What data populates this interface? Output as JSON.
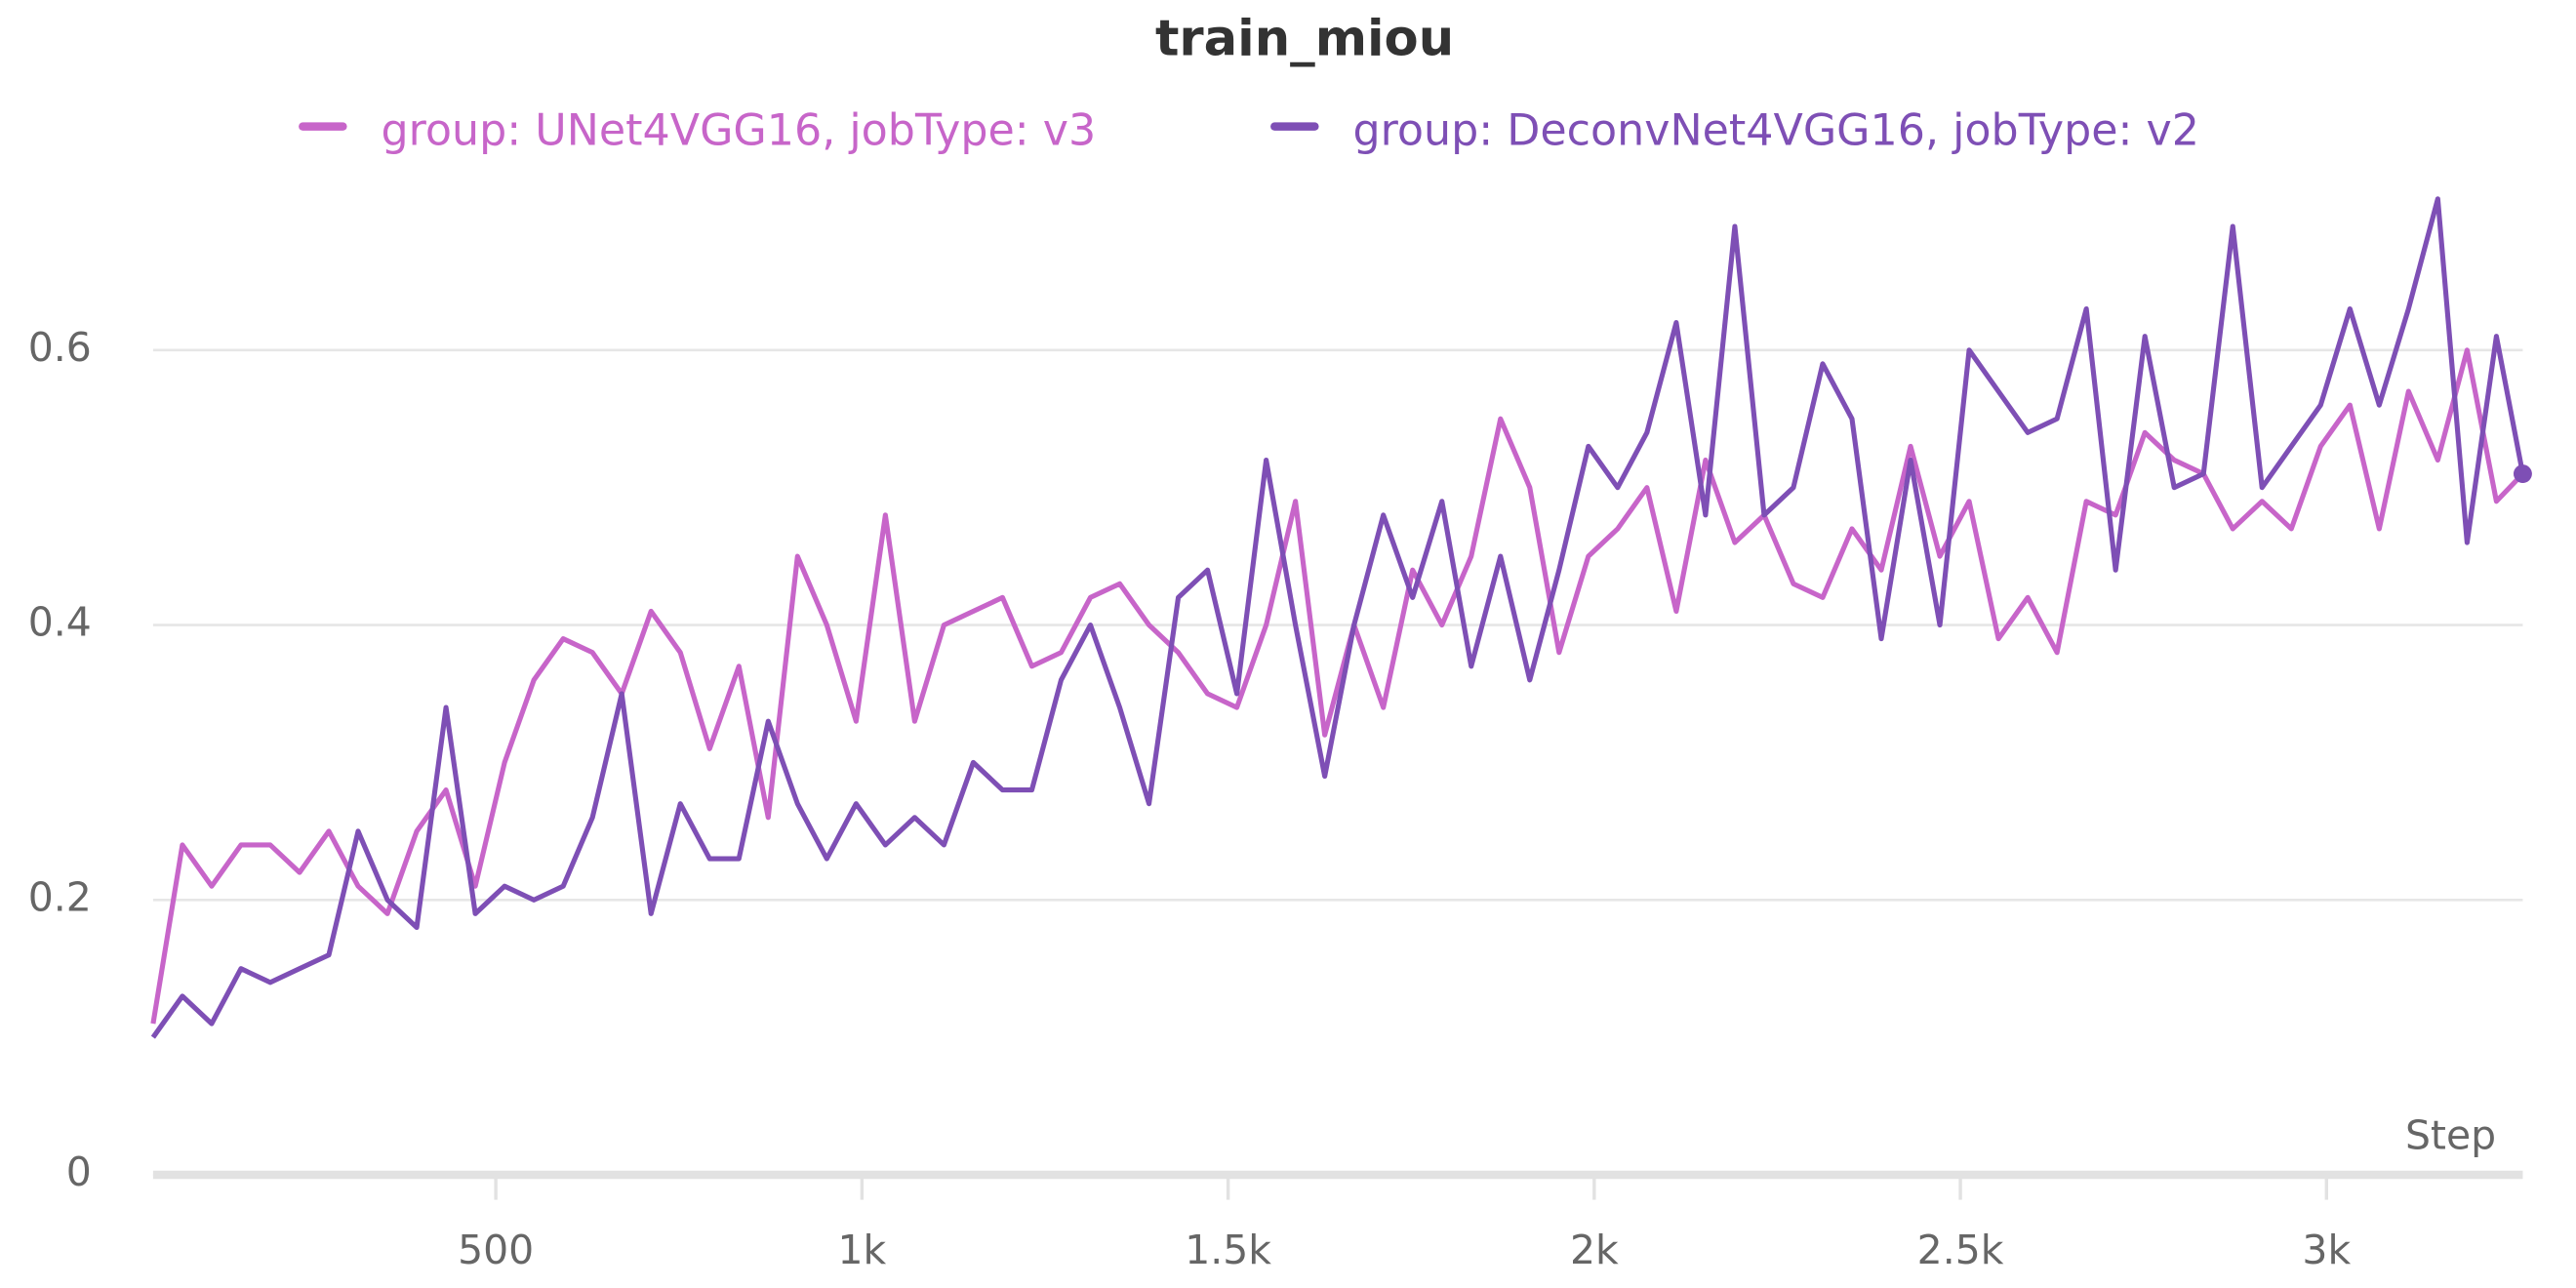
{
  "chart_data": {
    "type": "line",
    "title": "train_miou",
    "x_label": "Step",
    "x": [
      32,
      72,
      112,
      152,
      192,
      232,
      272,
      312,
      352,
      392,
      432,
      472,
      512,
      552,
      592,
      632,
      672,
      712,
      752,
      792,
      832,
      872,
      912,
      952,
      992,
      1032,
      1072,
      1112,
      1152,
      1192,
      1232,
      1272,
      1312,
      1352,
      1392,
      1432,
      1472,
      1512,
      1552,
      1592,
      1632,
      1672,
      1712,
      1752,
      1792,
      1832,
      1872,
      1912,
      1952,
      1992,
      2032,
      2072,
      2112,
      2152,
      2192,
      2232,
      2272,
      2312,
      2352,
      2392,
      2432,
      2472,
      2512,
      2552,
      2592,
      2632,
      2672,
      2712,
      2752,
      2792,
      2832,
      2872,
      2912,
      2952,
      2992,
      3032,
      3072,
      3112,
      3152,
      3192,
      3232,
      3268
    ],
    "series": [
      {
        "name": "group: UNet4VGG16, jobType: v3",
        "color": "#c765c9",
        "values": [
          0.11,
          0.24,
          0.21,
          0.24,
          0.24,
          0.22,
          0.25,
          0.21,
          0.19,
          0.25,
          0.28,
          0.21,
          0.3,
          0.36,
          0.39,
          0.38,
          0.35,
          0.41,
          0.38,
          0.31,
          0.37,
          0.26,
          0.45,
          0.4,
          0.33,
          0.48,
          0.33,
          0.4,
          0.41,
          0.42,
          0.37,
          0.38,
          0.42,
          0.43,
          0.4,
          0.38,
          0.35,
          0.34,
          0.4,
          0.49,
          0.32,
          0.4,
          0.34,
          0.44,
          0.4,
          0.45,
          0.55,
          0.5,
          0.38,
          0.45,
          0.47,
          0.5,
          0.41,
          0.52,
          0.46,
          0.48,
          0.43,
          0.42,
          0.47,
          0.44,
          0.53,
          0.45,
          0.49,
          0.39,
          0.42,
          0.38,
          0.49,
          0.48,
          0.54,
          0.52,
          0.51,
          0.47,
          0.49,
          0.47,
          0.53,
          0.56,
          0.47,
          0.57,
          0.52,
          0.6,
          0.49,
          0.51
        ]
      },
      {
        "name": "group: DeconvNet4VGG16, jobType: v2",
        "color": "#7e4fb5",
        "values": [
          0.1,
          0.13,
          0.11,
          0.15,
          0.14,
          0.15,
          0.16,
          0.25,
          0.2,
          0.18,
          0.34,
          0.19,
          0.21,
          0.2,
          0.21,
          0.26,
          0.35,
          0.19,
          0.27,
          0.23,
          0.23,
          0.33,
          0.27,
          0.23,
          0.27,
          0.24,
          0.26,
          0.24,
          0.3,
          0.28,
          0.28,
          0.36,
          0.4,
          0.34,
          0.27,
          0.42,
          0.44,
          0.35,
          0.52,
          0.4,
          0.29,
          0.4,
          0.48,
          0.42,
          0.49,
          0.37,
          0.45,
          0.36,
          0.44,
          0.53,
          0.5,
          0.54,
          0.62,
          0.48,
          0.69,
          0.48,
          0.5,
          0.59,
          0.55,
          0.39,
          0.52,
          0.4,
          0.6,
          0.57,
          0.54,
          0.55,
          0.63,
          0.44,
          0.61,
          0.5,
          0.51,
          0.69,
          0.5,
          0.53,
          0.56,
          0.63,
          0.56,
          0.63,
          0.71,
          0.46,
          0.61,
          0.51
        ]
      }
    ],
    "xlim": [
      32,
      3268
    ],
    "ylim": [
      0,
      0.73
    ],
    "xticks": [
      500,
      {
        "value": 1000,
        "label": "1k"
      },
      {
        "value": 1500,
        "label": "1.5k"
      },
      {
        "value": 2000,
        "label": "2k"
      },
      {
        "value": 2500,
        "label": "2.5k"
      },
      {
        "value": 3000,
        "label": "3k"
      }
    ],
    "yticks": [
      0,
      0.2,
      0.4,
      0.6
    ],
    "grid": true,
    "legend": "top"
  }
}
